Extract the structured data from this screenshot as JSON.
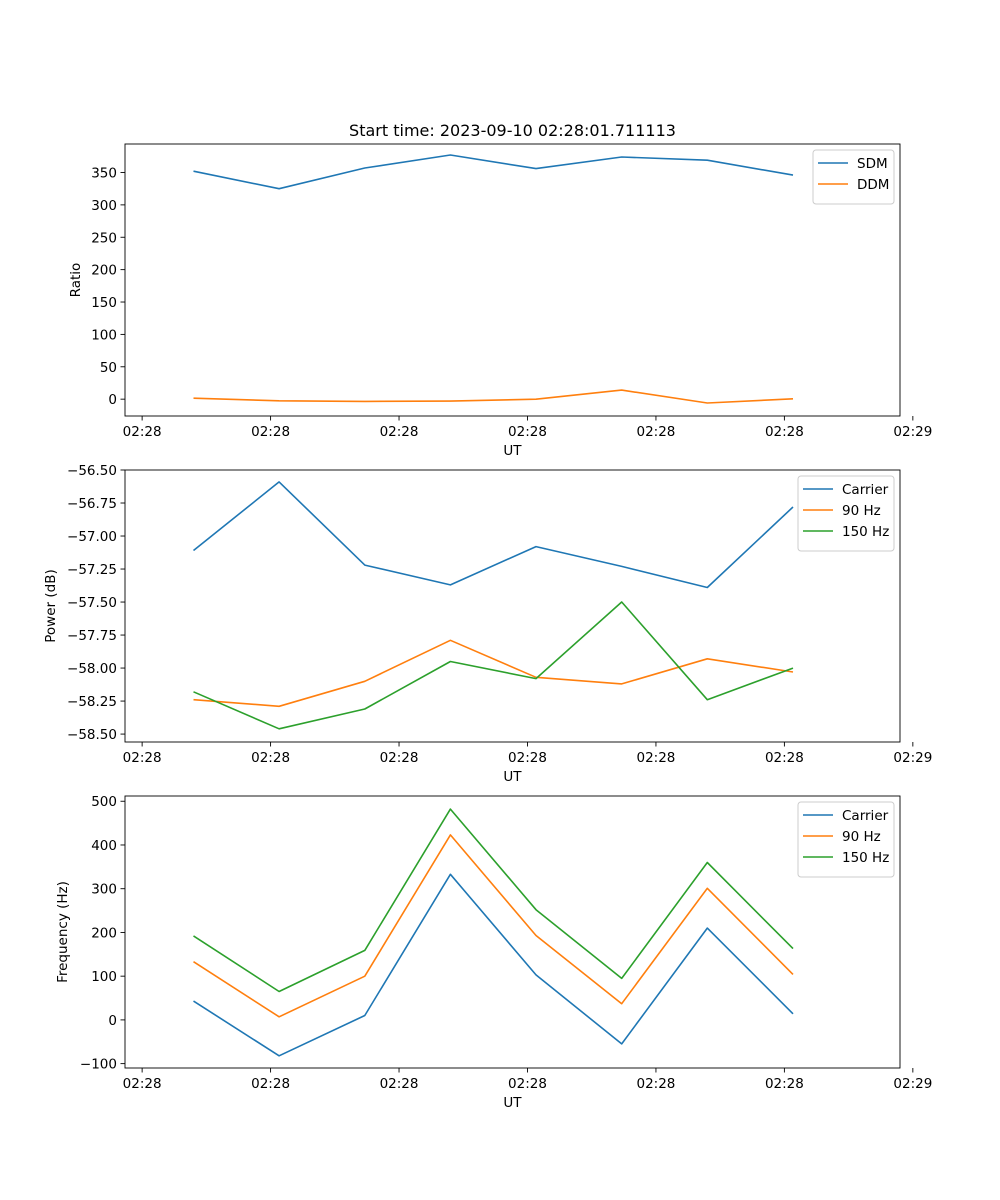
{
  "chart_data": [
    {
      "type": "line",
      "title": "Start time: 2023-09-10 02:28:01.711113",
      "xlabel": "UT",
      "ylabel": "Ratio",
      "x": [
        1,
        2,
        3,
        4,
        5,
        6,
        7,
        8
      ],
      "xlim": [
        0.2,
        9.25
      ],
      "ylim": [
        -26,
        394
      ],
      "xticks": [
        0.4,
        1.9,
        3.4,
        4.9,
        6.4,
        7.9,
        9.4
      ],
      "xtick_labels": [
        "02:28",
        "02:28",
        "02:28",
        "02:28",
        "02:28",
        "02:28",
        "02:29"
      ],
      "yticks": [
        0,
        50,
        100,
        150,
        200,
        250,
        300,
        350
      ],
      "ytick_labels": [
        "0",
        "50",
        "100",
        "150",
        "200",
        "250",
        "300",
        "350"
      ],
      "legend": "top-right",
      "series": [
        {
          "name": "SDM",
          "color": "#1f77b4",
          "values": [
            352,
            325,
            357,
            377,
            356,
            374,
            369,
            346
          ]
        },
        {
          "name": "DDM",
          "color": "#ff7f0e",
          "values": [
            1.5,
            -2.5,
            -3.5,
            -3,
            0,
            14,
            -6,
            0.5
          ]
        }
      ]
    },
    {
      "type": "line",
      "title": "",
      "xlabel": "UT",
      "ylabel": "Power (dB)",
      "x": [
        1,
        2,
        3,
        4,
        5,
        6,
        7,
        8
      ],
      "xlim": [
        0.2,
        9.25
      ],
      "ylim": [
        -58.56,
        -56.5
      ],
      "xticks": [
        0.4,
        1.9,
        3.4,
        4.9,
        6.4,
        7.9,
        9.4
      ],
      "xtick_labels": [
        "02:28",
        "02:28",
        "02:28",
        "02:28",
        "02:28",
        "02:28",
        "02:29"
      ],
      "yticks": [
        -58.5,
        -58.25,
        -58.0,
        -57.75,
        -57.5,
        -57.25,
        -57.0,
        -56.75,
        -56.5
      ],
      "ytick_labels": [
        "−58.50",
        "−58.25",
        "−58.00",
        "−57.75",
        "−57.50",
        "−57.25",
        "−57.00",
        "−56.75",
        "−56.50"
      ],
      "legend": "top-right",
      "series": [
        {
          "name": "Carrier",
          "color": "#1f77b4",
          "values": [
            -57.11,
            -56.59,
            -57.22,
            -57.37,
            -57.08,
            -57.23,
            -57.39,
            -56.78
          ]
        },
        {
          "name": "90 Hz",
          "color": "#ff7f0e",
          "values": [
            -58.24,
            -58.29,
            -58.1,
            -57.79,
            -58.07,
            -58.12,
            -57.93,
            -58.03
          ]
        },
        {
          "name": "150 Hz",
          "color": "#2ca02c",
          "values": [
            -58.18,
            -58.46,
            -58.31,
            -57.95,
            -58.08,
            -57.5,
            -58.24,
            -58.0
          ]
        }
      ]
    },
    {
      "type": "line",
      "title": "",
      "xlabel": "UT",
      "ylabel": "Frequency (Hz)",
      "x": [
        1,
        2,
        3,
        4,
        5,
        6,
        7,
        8
      ],
      "xlim": [
        0.2,
        9.25
      ],
      "ylim": [
        -110,
        512
      ],
      "xticks": [
        0.4,
        1.9,
        3.4,
        4.9,
        6.4,
        7.9,
        9.4
      ],
      "xtick_labels": [
        "02:28",
        "02:28",
        "02:28",
        "02:28",
        "02:28",
        "02:28",
        "02:29"
      ],
      "yticks": [
        -100,
        0,
        100,
        200,
        300,
        400,
        500
      ],
      "ytick_labels": [
        "−100",
        "0",
        "100",
        "200",
        "300",
        "400",
        "500"
      ],
      "legend": "top-right",
      "series": [
        {
          "name": "Carrier",
          "color": "#1f77b4",
          "values": [
            43,
            -82,
            10,
            333,
            103,
            -55,
            210,
            14
          ]
        },
        {
          "name": "90 Hz",
          "color": "#ff7f0e",
          "values": [
            133,
            7,
            100,
            423,
            193,
            37,
            301,
            104
          ]
        },
        {
          "name": "150 Hz",
          "color": "#2ca02c",
          "values": [
            192,
            65,
            159,
            482,
            252,
            95,
            360,
            163
          ]
        }
      ]
    }
  ]
}
